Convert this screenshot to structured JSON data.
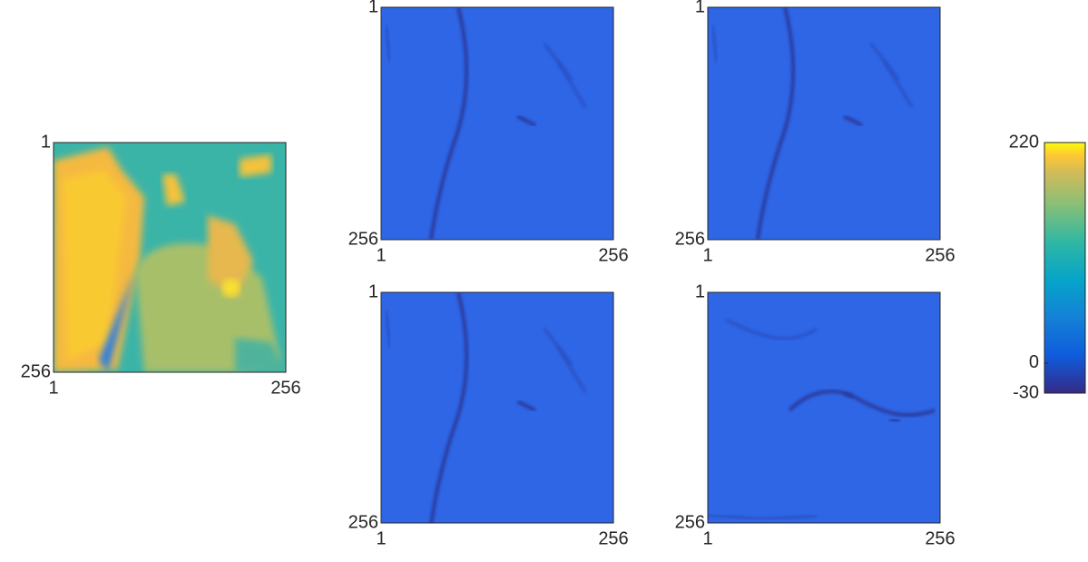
{
  "chart_data": [
    {
      "type": "image",
      "xlim": [
        1,
        256
      ],
      "ylim": [
        1,
        256
      ],
      "xticks": [
        1,
        256
      ],
      "yticks": [
        1,
        256
      ]
    },
    {
      "type": "image",
      "xlim": [
        1,
        256
      ],
      "ylim": [
        1,
        256
      ],
      "xticks": [
        1,
        256
      ],
      "yticks": [
        1,
        256
      ]
    },
    {
      "type": "image",
      "xlim": [
        1,
        256
      ],
      "ylim": [
        1,
        256
      ],
      "xticks": [
        1,
        256
      ],
      "yticks": [
        1,
        256
      ]
    },
    {
      "type": "image",
      "xlim": [
        1,
        256
      ],
      "ylim": [
        1,
        256
      ],
      "xticks": [
        1,
        256
      ],
      "yticks": [
        1,
        256
      ]
    },
    {
      "type": "image",
      "xlim": [
        1,
        256
      ],
      "ylim": [
        1,
        256
      ],
      "xticks": [
        1,
        256
      ],
      "yticks": [
        1,
        256
      ]
    },
    {
      "type": "colorbar",
      "ylim": [
        -30,
        220
      ],
      "yticks": [
        -30,
        0,
        220
      ]
    }
  ]
}
